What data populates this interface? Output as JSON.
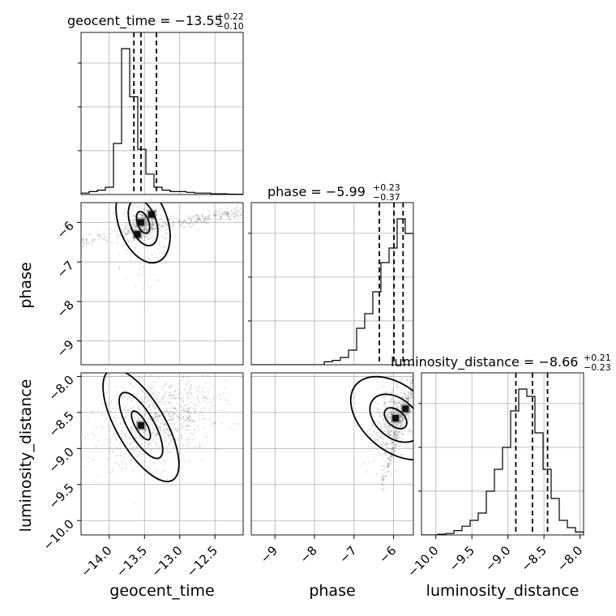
{
  "chart_data": {
    "type": "corner",
    "parameters": [
      {
        "name": "geocent_time",
        "label": "geocent_time",
        "range": [
          -14.4,
          -12.1
        ],
        "ticks": [
          -14.0,
          -13.5,
          -13.0,
          -12.5
        ],
        "tick_labels": [
          "−14.0",
          "−13.5",
          "−13.0",
          "−12.5"
        ]
      },
      {
        "name": "phase",
        "label": "phase",
        "range": [
          -9.6,
          -5.5
        ],
        "ticks": [
          -9,
          -8,
          -7,
          -6
        ],
        "tick_labels": [
          "−9",
          "−8",
          "−7",
          "−6"
        ]
      },
      {
        "name": "luminosity_distance",
        "label": "luminosity_distance",
        "range": [
          -10.2,
          -7.95
        ],
        "ticks": [
          -10.0,
          -9.5,
          -9.0,
          -8.5,
          -8.0
        ],
        "tick_labels": [
          "−10.0",
          "−9.5",
          "−9.0",
          "−8.5",
          "−8.0"
        ]
      }
    ],
    "titles": [
      {
        "prefix": "geocent_time = −13.55",
        "sup": "+0.22",
        "sub": "−0.10"
      },
      {
        "prefix": "phase = −5.99",
        "sup": "+0.23",
        "sub": "−0.37"
      },
      {
        "prefix": "luminosity_distance = −8.66",
        "sup": "+0.21",
        "sub": "−0.23"
      }
    ],
    "quantiles": [
      [
        -13.65,
        -13.55,
        -13.33
      ],
      [
        -6.36,
        -5.99,
        -5.76
      ],
      [
        -8.89,
        -8.66,
        -8.45
      ]
    ],
    "histograms": [
      {
        "bins": 20,
        "counts": [
          0.01,
          0.02,
          0.03,
          0.05,
          0.35,
          1.0,
          0.67,
          0.31,
          0.14,
          0.05,
          0.03,
          0.02,
          0.02,
          0.015,
          0.01,
          0.01,
          0.005,
          0.005,
          0.003,
          0.002
        ]
      },
      {
        "bins": 20,
        "counts": [
          0,
          0,
          0,
          0,
          0,
          0,
          0,
          0,
          0,
          0.02,
          0.03,
          0.05,
          0.1,
          0.25,
          0.35,
          0.5,
          0.7,
          0.8,
          1.0,
          0.9
        ]
      },
      {
        "bins": 20,
        "counts": [
          0,
          0,
          0.005,
          0.01,
          0.03,
          0.06,
          0.1,
          0.15,
          0.3,
          0.45,
          0.6,
          0.85,
          1.0,
          0.95,
          0.7,
          0.45,
          0.25,
          0.1,
          0.05,
          0.02
        ]
      }
    ],
    "pairs": [
      {
        "x": "geocent_time",
        "y": "phase",
        "center": [
          -13.52,
          -6.0
        ],
        "peak_points": [
          [
            -13.55,
            -6.0
          ],
          [
            -13.4,
            -5.8
          ],
          [
            -13.6,
            -6.3
          ]
        ]
      },
      {
        "x": "geocent_time",
        "y": "luminosity_distance",
        "center": [
          -13.55,
          -8.68
        ],
        "peak_points": [
          [
            -13.55,
            -8.68
          ]
        ]
      },
      {
        "x": "phase",
        "y": "luminosity_distance",
        "center": [
          -5.95,
          -8.58
        ],
        "peak_points": [
          [
            -5.95,
            -8.58
          ],
          [
            -5.7,
            -8.45
          ]
        ]
      }
    ],
    "grid": true
  }
}
